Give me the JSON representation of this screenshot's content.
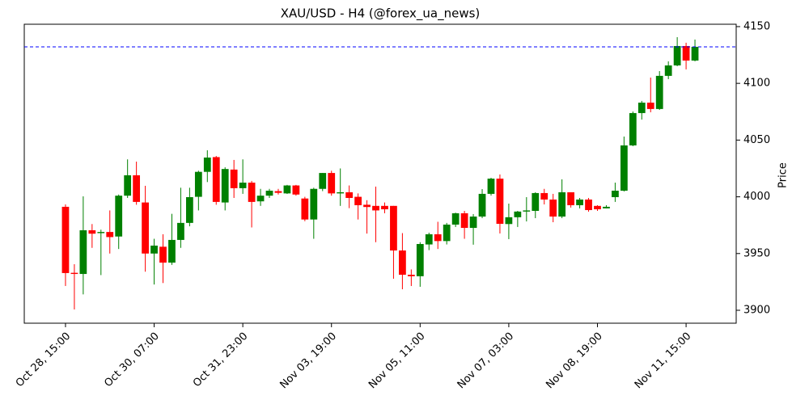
{
  "chart_data": {
    "type": "candlestick",
    "title": "XAU/USD - H4 (@forex_ua_news)",
    "y_label": "Price",
    "up_color": "green",
    "down_color": "red",
    "hline": {
      "value": 4132.2,
      "color": "blue"
    },
    "xlim": [
      -4.65,
      75.65
    ],
    "xticks": [
      {
        "value": 0,
        "label": "Oct 28, 15:00"
      },
      {
        "value": 10,
        "label": "Oct 30, 07:00"
      },
      {
        "value": 20,
        "label": "Oct 31, 23:00"
      },
      {
        "value": 30,
        "label": "Nov 03, 19:00"
      },
      {
        "value": 40,
        "label": "Nov 05, 11:00"
      },
      {
        "value": 50,
        "label": "Nov 07, 03:00"
      },
      {
        "value": 60,
        "label": "Nov 08, 19:00"
      },
      {
        "value": 70,
        "label": "Nov 11, 15:00"
      }
    ],
    "ylim": [
      3888.6,
      4152.1
    ],
    "yticks": [
      3900,
      3950,
      4000,
      4050,
      4100,
      4150
    ],
    "open": [
      3991.2,
      3933,
      3932,
      3970.5,
      3968,
      3969,
      3965,
      4001,
      4019,
      3995,
      3950,
      3956,
      3942,
      3962,
      3977,
      4000,
      4022,
      4035,
      3995,
      4024,
      4007.6,
      4012.5,
      3996,
      4001,
      4005,
      4003,
      4010,
      3998.5,
      3980,
      4007,
      4021,
      4003,
      4004,
      4000,
      3993,
      3992,
      3992,
      3992,
      3952.7,
      3931.3,
      3930,
      3958,
      3967,
      3961,
      3975.5,
      3985.5,
      3972.6,
      3982.6,
      4002.6,
      4016,
      3976,
      3982,
      3987,
      3987.6,
      4003.3,
      3997.6,
      3982.6,
      4004,
      3992.6,
      3997.6,
      3992,
      3989.8,
      3999.7,
      4005.4,
      4045.3,
      4073.8,
      4083,
      4077.4,
      4106.6,
      4115.8,
      4132.9,
      4120.1
    ],
    "high": [
      3993.3,
      3940.6,
      4000.4,
      3976,
      3971,
      3988,
      4002,
      4033,
      4031,
      4009.7,
      3963,
      3967,
      3985,
      4008,
      4008,
      4023,
      4041,
      4036,
      4026,
      4032.5,
      4033,
      4014,
      4007,
      4007,
      4007,
      4010.5,
      4010.5,
      4000,
      4008,
      4021,
      4023,
      4025,
      4010,
      4003,
      3997,
      4009,
      3995,
      3992,
      3968,
      3936,
      3960,
      3968.4,
      3978,
      3977,
      3986,
      3987.6,
      3984.8,
      4006.8,
      4016.8,
      4019.7,
      3994,
      3987.6,
      3999.7,
      4004,
      4007,
      4002.6,
      4015.4,
      4004,
      3999,
      3999,
      3992.6,
      3992.6,
      4012.5,
      4053.1,
      4075.2,
      4084.5,
      4105.1,
      4110.8,
      4119.4,
      4140.7,
      4135.8,
      4138.6
    ],
    "low": [
      3921.4,
      3900.7,
      3914,
      3955,
      3931,
      3950,
      3954,
      3999,
      3993,
      3934,
      3922.7,
      3924,
      3940,
      3955,
      3974,
      3988,
      4013,
      3993,
      3988,
      3999,
      4002.6,
      3973,
      3992,
      3999,
      4002,
      4002.5,
      4001,
      3978.5,
      3963,
      4005,
      4001,
      3992,
      3990,
      3980,
      3967.6,
      3960,
      3985.5,
      3927.8,
      3918.5,
      3921.4,
      3920.7,
      3953,
      3954,
      3958,
      3973.4,
      3963,
      3957.8,
      3981.2,
      4001.1,
      3967.7,
      3962.7,
      3973.4,
      3978.3,
      3981.2,
      3993.3,
      3977.6,
      3981.2,
      3990.5,
      3989.8,
      3986.9,
      3987.6,
      3989.8,
      3995.5,
      4004.7,
      4044.6,
      4068.1,
      4074.5,
      4076.6,
      4103.7,
      4115.1,
      4112.3,
      4119.4
    ],
    "close": [
      3932.8,
      3932,
      3970.5,
      3967.5,
      3969,
      3964.5,
      4001,
      4019,
      3995.5,
      3950,
      3957,
      3942,
      3962,
      3977,
      3999.7,
      4022,
      4034.6,
      3995.5,
      4024.5,
      4007.6,
      4012.5,
      3995.5,
      4001,
      4005.4,
      4003.5,
      4010,
      4002,
      3980,
      4007,
      4021,
      4003,
      4004,
      3999,
      3992.6,
      3991,
      3988,
      3989,
      3952.7,
      3931.3,
      3930,
      3958.4,
      3967,
      3961,
      3975.5,
      3985.5,
      3972.6,
      3982.6,
      4002.6,
      4016,
      3976.2,
      3982,
      3987,
      3988,
      4003.3,
      3997.6,
      3982.6,
      4004,
      3992.6,
      3997.6,
      3988.3,
      3989,
      3991.2,
      4005.4,
      4045.3,
      4073.8,
      4083,
      4077.4,
      4106.6,
      4115.8,
      4132.9,
      4120.1,
      4132.2
    ]
  }
}
